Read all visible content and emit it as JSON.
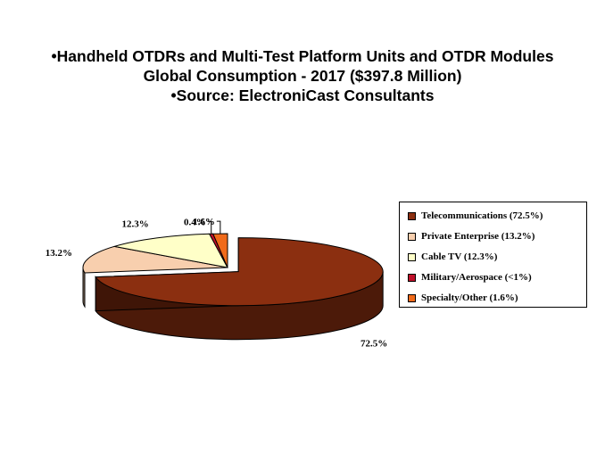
{
  "chart_data": {
    "type": "pie",
    "title_lines": [
      "•Handheld OTDRs and Multi-Test Platform Units and OTDR Modules",
      "Global Consumption - 2017 ($397.8 Million)",
      "•Source: ElectroniCast Consultants"
    ],
    "slices": [
      {
        "legend": "Telecommunications (72.5%)",
        "label": "72.5%",
        "value": 72.5,
        "color": "#8b2f10"
      },
      {
        "legend": "Private Enterprise (13.2%)",
        "label": "13.2%",
        "value": 13.2,
        "color": "#f8cfae"
      },
      {
        "legend": "Cable TV (12.3%)",
        "label": "12.3%",
        "value": 12.3,
        "color": "#ffffc8"
      },
      {
        "legend": "Military/Aerospace (<1%)",
        "label": "0.4%",
        "value": 0.4,
        "color": "#c0102a"
      },
      {
        "legend": "Specialty/Other (1.6%)",
        "label": "1.6%",
        "value": 1.6,
        "color": "#f06a1a"
      }
    ],
    "exploded_slice": "Telecommunications (72.5%)",
    "style": "3d",
    "legend_position": "right"
  }
}
